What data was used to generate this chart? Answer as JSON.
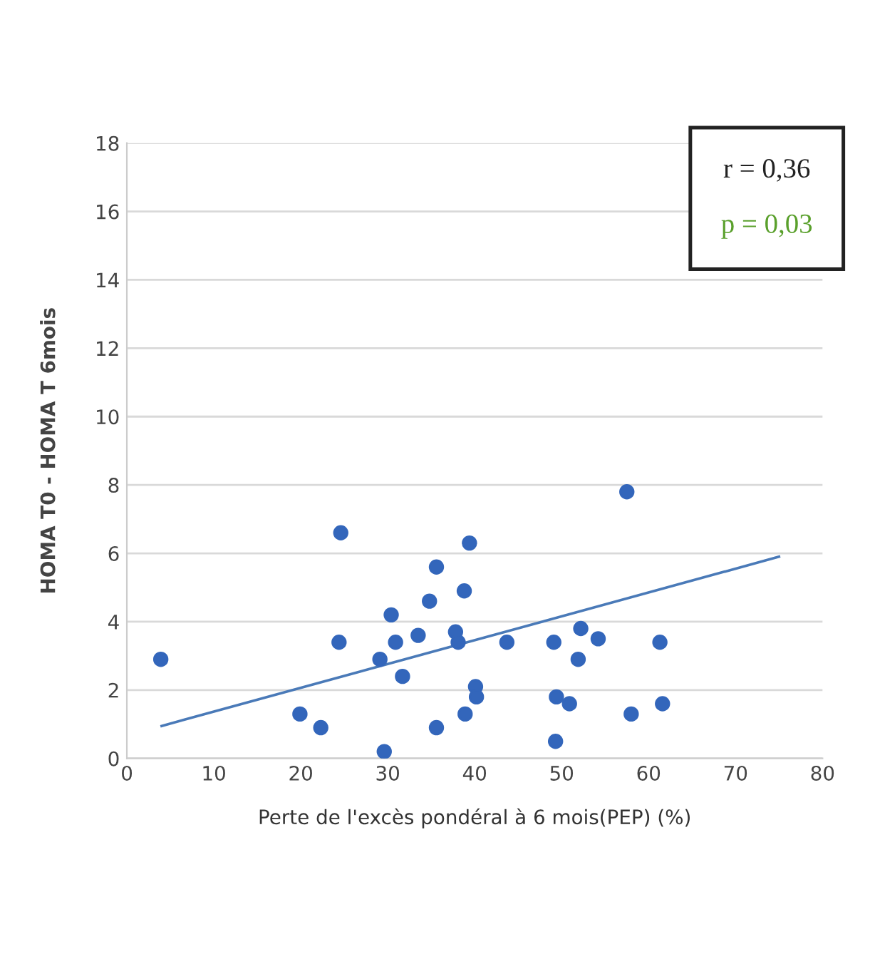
{
  "chart_data": {
    "type": "scatter",
    "xlabel": "Perte de l'excès pondéral à 6 mois(PEP) (%)",
    "ylabel": "HOMA T0 - HOMA T 6mois",
    "xlim": [
      0,
      80
    ],
    "xticks": [
      0,
      10,
      20,
      30,
      40,
      50,
      60,
      70,
      80
    ],
    "ylim": [
      0,
      18
    ],
    "yticks": [
      0,
      2,
      4,
      6,
      8,
      10,
      12,
      14,
      16,
      18
    ],
    "grid": "y",
    "series": [
      {
        "color": "#3366bb",
        "marker": "circle",
        "x": [
          3.9,
          19.9,
          22.3,
          24.6,
          24.4,
          29.1,
          29.6,
          30.4,
          30.9,
          31.7,
          33.5,
          34.8,
          35.6,
          35.6,
          37.8,
          38.1,
          38.8,
          38.9,
          39.4,
          40.1,
          40.2,
          43.7,
          49.1,
          49.3,
          49.4,
          50.9,
          51.9,
          52.2,
          54.2,
          57.5,
          58.0,
          61.3,
          61.6
        ],
        "values": [
          2.9,
          1.3,
          0.9,
          6.6,
          3.4,
          2.9,
          0.2,
          4.2,
          3.4,
          2.4,
          3.6,
          4.6,
          5.6,
          0.9,
          3.7,
          3.4,
          4.9,
          1.3,
          6.3,
          2.1,
          1.8,
          3.4,
          3.4,
          0.5,
          1.8,
          1.6,
          2.9,
          3.8,
          3.5,
          7.8,
          1.3,
          3.4,
          1.6
        ]
      },
      {
        "type": "line",
        "color": "#4a7ab8",
        "x": [
          4,
          75
        ],
        "values": [
          0.95,
          5.9
        ]
      }
    ],
    "annotations": [
      "r = 0,36",
      "p = 0,03"
    ]
  }
}
